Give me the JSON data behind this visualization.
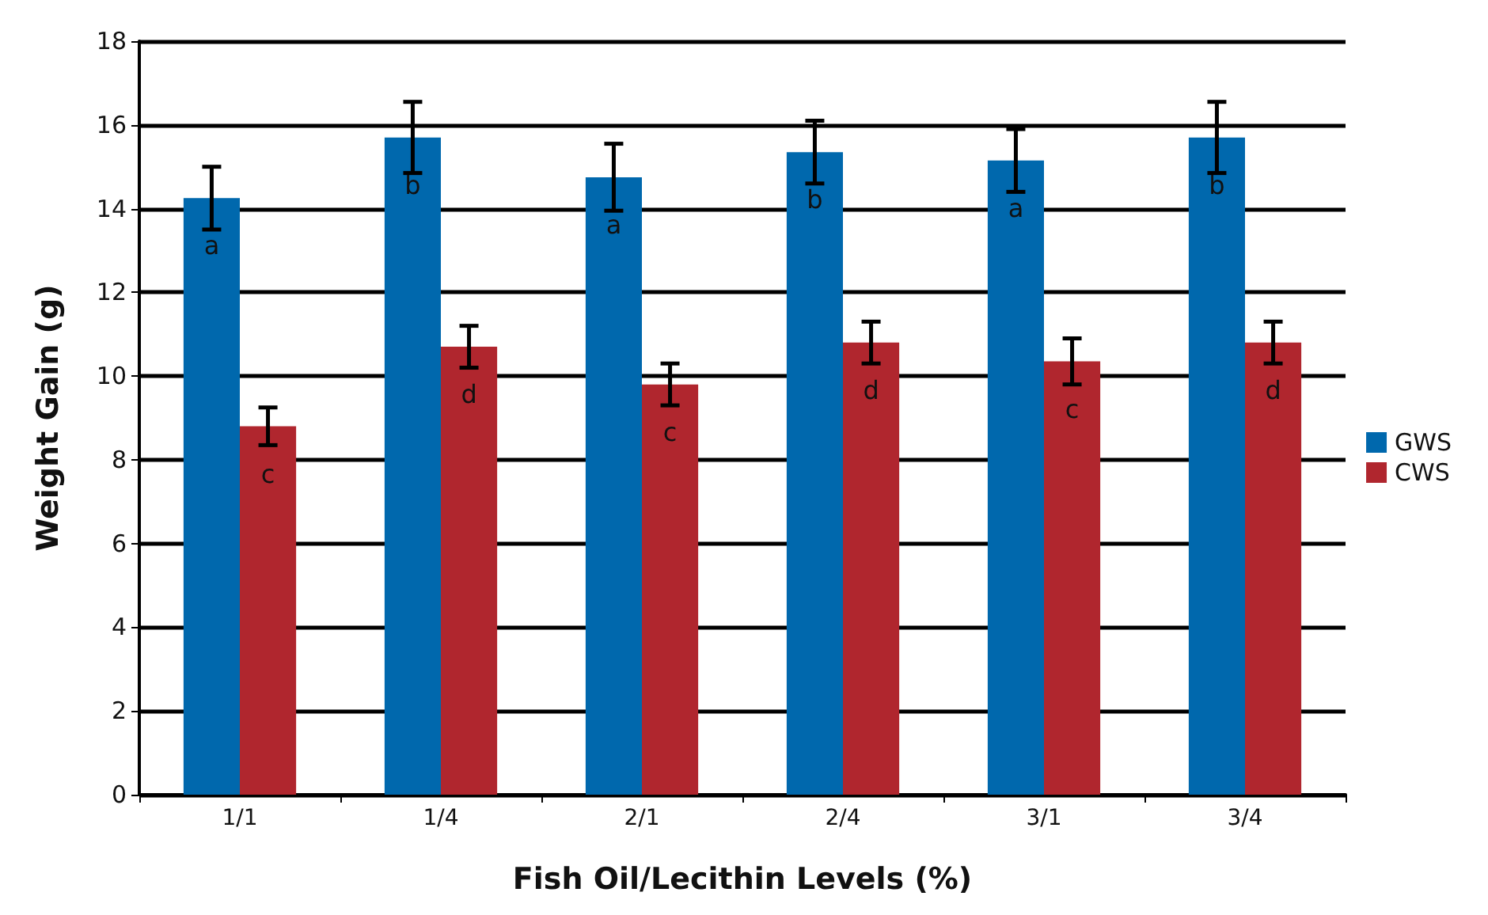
{
  "chart_data": {
    "type": "bar",
    "xlabel": "Fish Oil/Lecithin Levels (%)",
    "ylabel": "Weight Gain (g)",
    "categories": [
      "1/1",
      "1/4",
      "2/1",
      "2/4",
      "3/1",
      "3/4"
    ],
    "series": [
      {
        "name": "GWS",
        "color": "#0068ad",
        "values": [
          14.25,
          15.7,
          14.75,
          15.35,
          15.15,
          15.7
        ],
        "errors": [
          0.75,
          0.85,
          0.8,
          0.75,
          0.75,
          0.85
        ],
        "value_labels": [
          "a",
          "b",
          "a",
          "b",
          "a",
          "b"
        ]
      },
      {
        "name": "CWS",
        "color": "#b0262e",
        "values": [
          8.8,
          10.7,
          9.8,
          10.8,
          10.35,
          10.8
        ],
        "errors": [
          0.45,
          0.5,
          0.5,
          0.5,
          0.55,
          0.5
        ],
        "value_labels": [
          "c",
          "d",
          "c",
          "d",
          "c",
          "d"
        ]
      }
    ],
    "ylim": [
      0,
      18
    ],
    "yticks": [
      0,
      2,
      4,
      6,
      8,
      10,
      12,
      14,
      16,
      18
    ],
    "grid": "y",
    "legend": "right"
  }
}
